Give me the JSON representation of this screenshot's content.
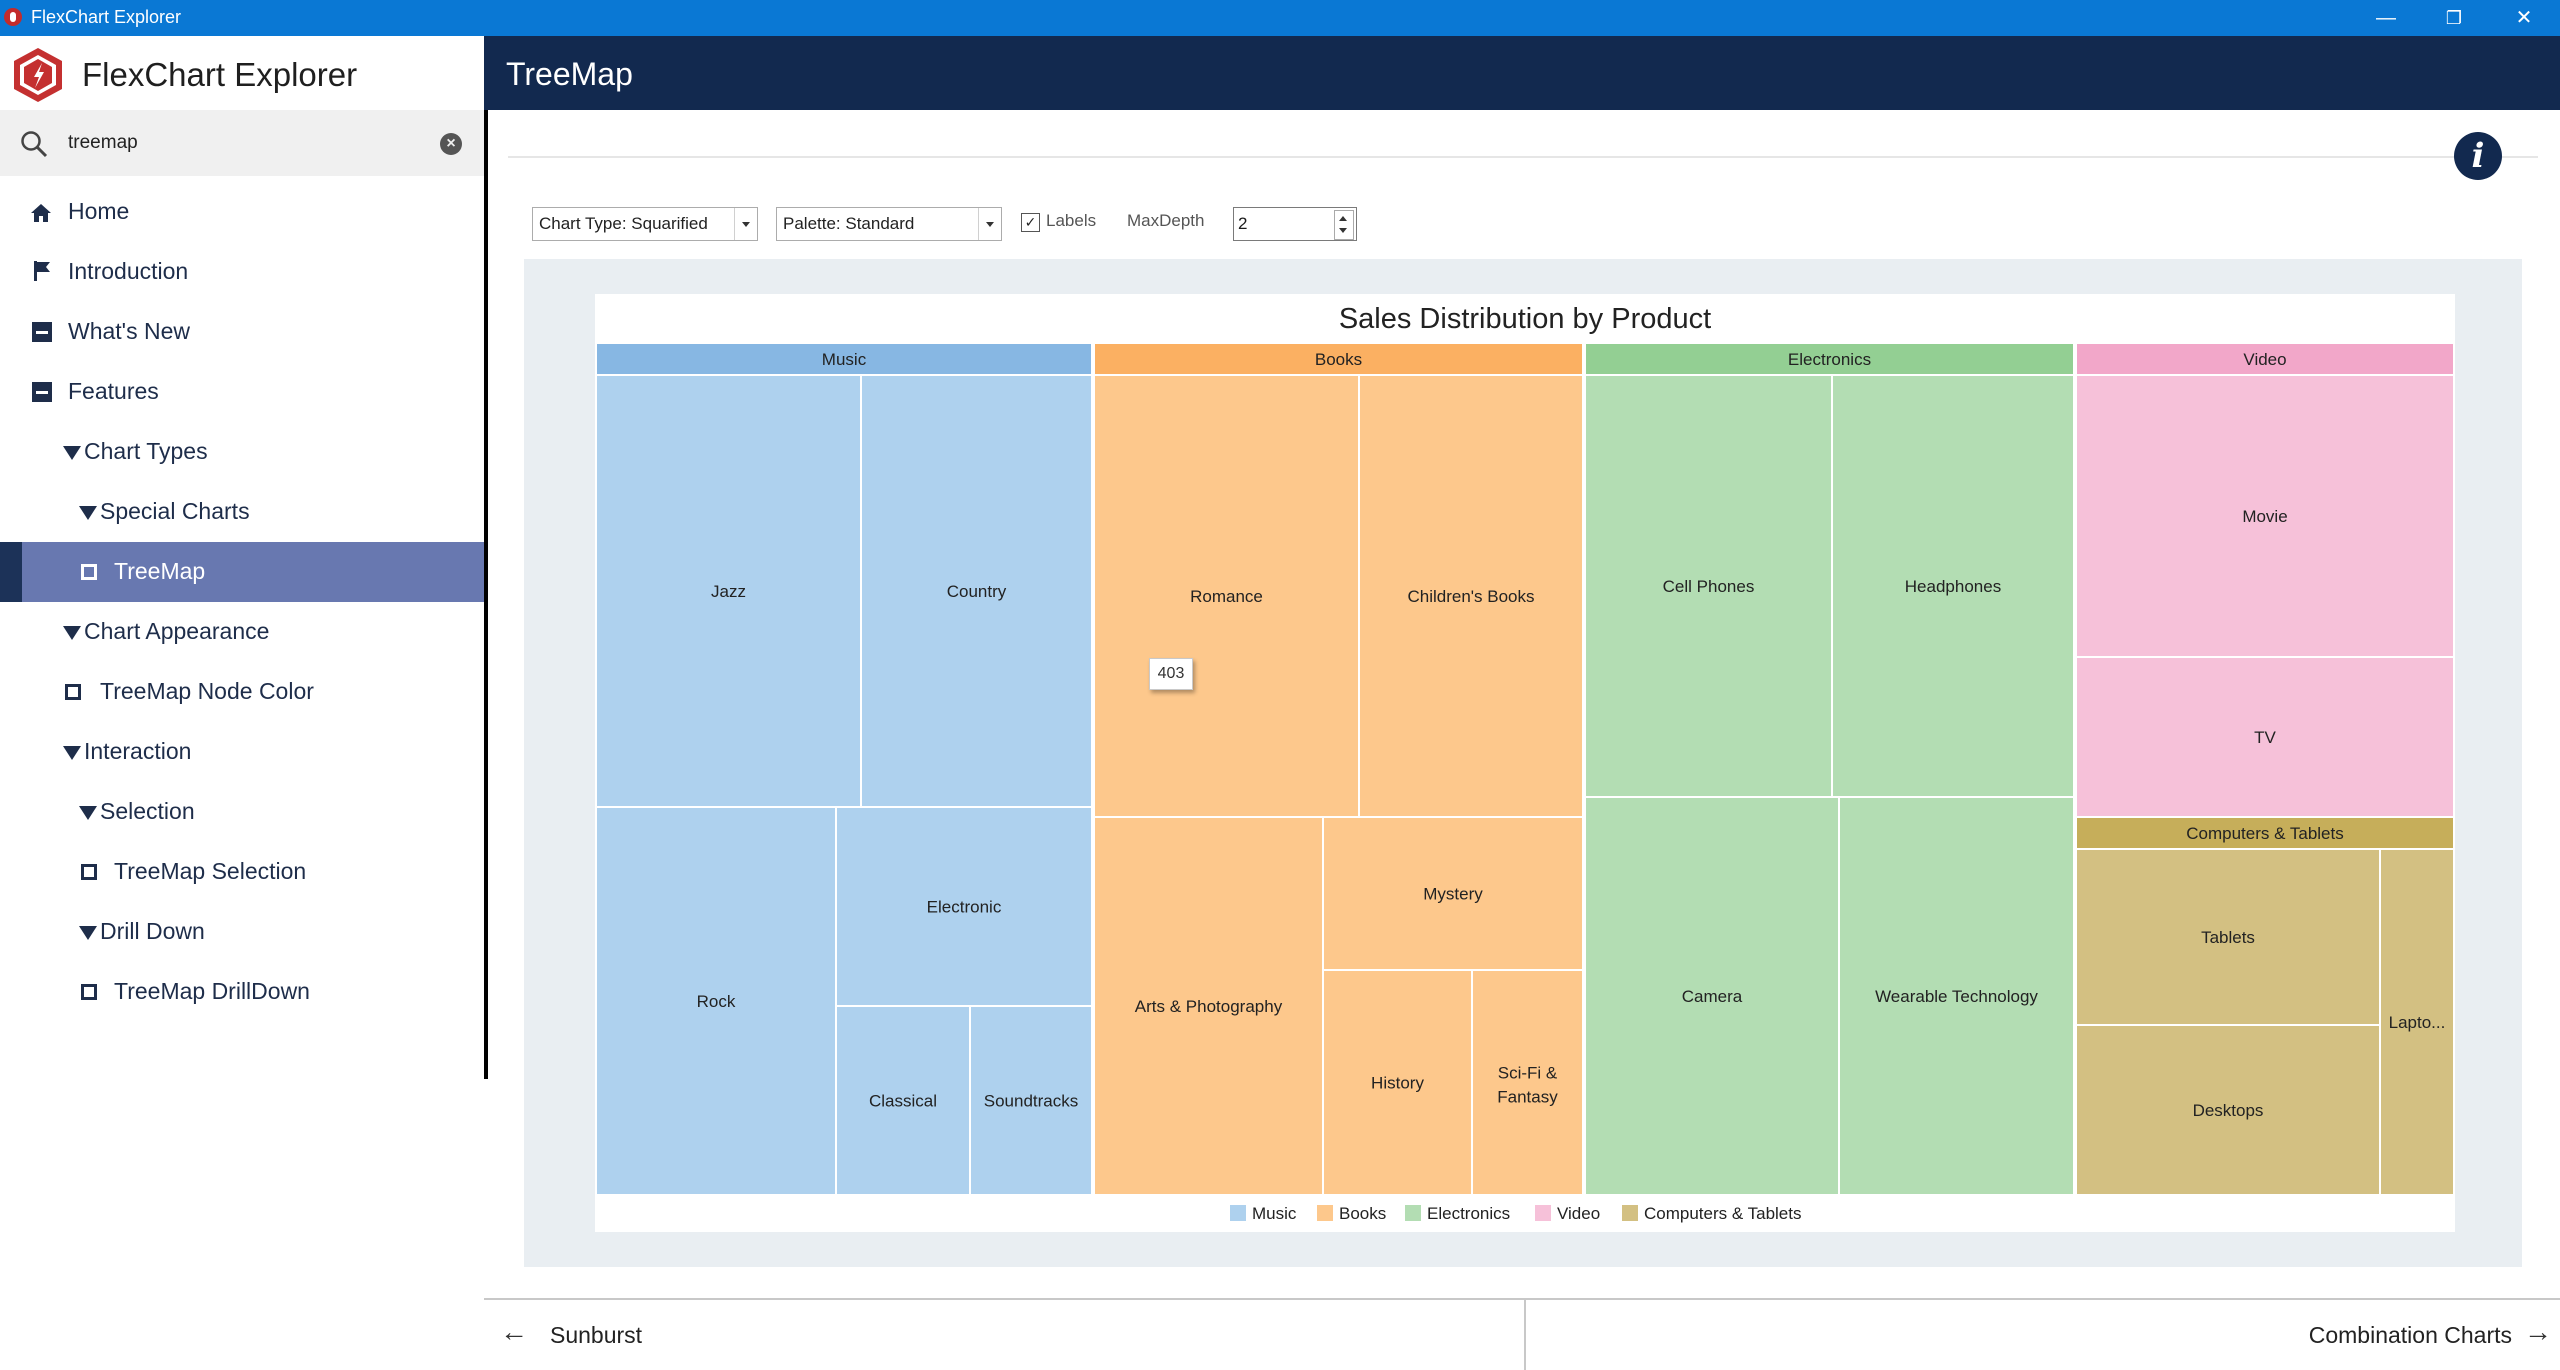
{
  "window": {
    "title": "FlexChart Explorer",
    "minimize": "—",
    "restore": "❐",
    "close": "✕"
  },
  "brand": {
    "name": "FlexChart Explorer"
  },
  "search": {
    "value": "treemap",
    "placeholder": ""
  },
  "nav": [
    {
      "label": "Home",
      "icon": "home-icon",
      "indent": 0
    },
    {
      "label": "Introduction",
      "icon": "flag-icon",
      "indent": 0
    },
    {
      "label": "What's New",
      "icon": "minus-icon",
      "indent": 0
    },
    {
      "label": "Features",
      "icon": "minus-icon",
      "indent": 0
    },
    {
      "label": "Chart Types",
      "icon": "expand-triangle-icon",
      "indent": 1
    },
    {
      "label": "Special Charts",
      "icon": "expand-triangle-icon",
      "indent": 2
    },
    {
      "label": "TreeMap",
      "icon": "leaf-square-icon",
      "indent": 3,
      "selected": true
    },
    {
      "label": "Chart Appearance",
      "icon": "expand-triangle-icon",
      "indent": 1
    },
    {
      "label": "TreeMap Node Color",
      "icon": "leaf-square-icon",
      "indent": 2
    },
    {
      "label": "Interaction",
      "icon": "expand-triangle-icon",
      "indent": 1
    },
    {
      "label": "Selection",
      "icon": "expand-triangle-icon",
      "indent": 2
    },
    {
      "label": "TreeMap Selection",
      "icon": "leaf-square-icon",
      "indent": 3
    },
    {
      "label": "Drill Down",
      "icon": "expand-triangle-icon",
      "indent": 2
    },
    {
      "label": "TreeMap DrillDown",
      "icon": "leaf-square-icon",
      "indent": 3
    }
  ],
  "header": {
    "title": "TreeMap"
  },
  "toolbar": {
    "chart_type": "Chart Type: Squarified",
    "palette": "Palette: Standard",
    "labels_checked": true,
    "labels_text": "Labels",
    "maxdepth_label": "MaxDepth",
    "maxdepth_value": "2"
  },
  "tooltip": {
    "text": "403"
  },
  "footer": {
    "prev": "Sunburst",
    "next": "Combination Charts"
  },
  "colors": {
    "titlebar": "#0a78d4",
    "header": "#12294f",
    "selected_nav": "#6878b0"
  },
  "chart_data": {
    "type": "treemap",
    "title": "Sales Distribution by Product",
    "legend_position": "bottom",
    "groups": [
      {
        "name": "Music",
        "color": "#aed1ee",
        "header_color": "#87b7e3",
        "children": [
          {
            "name": "Jazz"
          },
          {
            "name": "Country"
          },
          {
            "name": "Rock"
          },
          {
            "name": "Electronic"
          },
          {
            "name": "Classical"
          },
          {
            "name": "Soundtracks"
          }
        ]
      },
      {
        "name": "Books",
        "color": "#fdc88c",
        "header_color": "#fbb062",
        "children": [
          {
            "name": "Romance",
            "value": 403
          },
          {
            "name": "Children's Books"
          },
          {
            "name": "Arts & Photography"
          },
          {
            "name": "Mystery"
          },
          {
            "name": "History"
          },
          {
            "name": "Sci-Fi & Fantasy"
          }
        ]
      },
      {
        "name": "Electronics",
        "color": "#b3ddb3",
        "header_color": "#93cf93",
        "children": [
          {
            "name": "Cell Phones"
          },
          {
            "name": "Headphones"
          },
          {
            "name": "Camera"
          },
          {
            "name": "Wearable Technology"
          }
        ]
      },
      {
        "name": "Video",
        "color": "#f6c1d9",
        "header_color": "#f2a7c9",
        "children": [
          {
            "name": "Movie"
          },
          {
            "name": "TV"
          }
        ]
      },
      {
        "name": "Computers & Tablets",
        "color": "#d3c082",
        "header_color": "#c6ae5a",
        "children": [
          {
            "name": "Tablets"
          },
          {
            "name": "Desktops"
          },
          {
            "name": "Lapto..."
          }
        ]
      }
    ]
  }
}
